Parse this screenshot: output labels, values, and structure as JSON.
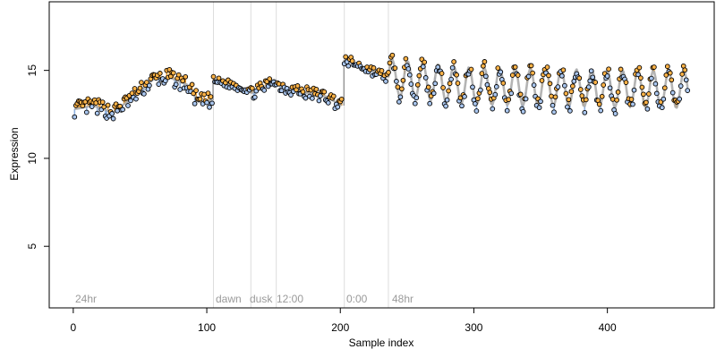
{
  "colors": {
    "points_orange": "#ffb347",
    "points_blue": "#a9c6ef",
    "fit_line": "#a7a7a7",
    "high_bar": "#f0a030",
    "low_bar": "#8fb1e0",
    "region_line": "#dddddd",
    "jump_line": "#8a8a8a"
  },
  "chart_data": {
    "type": "scatter",
    "xlabel": "Sample index",
    "ylabel": "Expression",
    "xlim": [
      -18,
      480
    ],
    "ylim": [
      1.5,
      18.9
    ],
    "x_ticks": [
      0,
      100,
      200,
      300,
      400
    ],
    "y_ticks": [
      5,
      10,
      15
    ],
    "x_tick_labels": [
      "0",
      "100",
      "200",
      "300",
      "400"
    ],
    "y_tick_labels": [
      "5",
      "10",
      "15"
    ],
    "grid": false,
    "legend": "none",
    "region_lines": [
      105,
      133,
      152,
      203,
      236
    ],
    "region_labels": [
      {
        "x": 3,
        "text": "24hr"
      },
      {
        "x": 107,
        "text": "dawn"
      },
      {
        "x": 133,
        "text": "dusk"
      },
      {
        "x": 152,
        "text": "12:00"
      },
      {
        "x": 204,
        "text": "0:00"
      },
      {
        "x": 237,
        "text": "48hr"
      }
    ],
    "segments": [
      {
        "x0": 1,
        "x1": 104,
        "trend": [
          [
            1,
            12.8
          ],
          [
            15,
            13.0
          ],
          [
            30,
            12.6
          ],
          [
            45,
            13.5
          ],
          [
            60,
            14.5
          ],
          [
            72,
            14.6
          ],
          [
            85,
            14.2
          ],
          [
            94,
            13.2
          ],
          [
            104,
            13.3
          ]
        ],
        "noise": 0.45
      },
      {
        "x0": 105,
        "x1": 132,
        "trend": [
          [
            105,
            14.4
          ],
          [
            118,
            14.2
          ],
          [
            132,
            13.9
          ]
        ],
        "noise": 0.25
      },
      {
        "x0": 133,
        "x1": 151,
        "trend": [
          [
            133,
            13.7
          ],
          [
            142,
            14.0
          ],
          [
            151,
            14.5
          ]
        ],
        "noise": 0.35
      },
      {
        "x0": 152,
        "x1": 201,
        "trend": [
          [
            152,
            14.2
          ],
          [
            170,
            13.8
          ],
          [
            190,
            13.5
          ],
          [
            201,
            13.0
          ]
        ],
        "noise": 0.4
      },
      {
        "x0": 203,
        "x1": 235,
        "trend": [
          [
            203,
            15.6
          ],
          [
            220,
            15.1
          ],
          [
            235,
            14.6
          ]
        ],
        "noise": 0.3
      },
      {
        "x0": 236,
        "x1": 460,
        "trend": [
          [
            236,
            14.6
          ],
          [
            300,
            14.1
          ],
          [
            380,
            14.0
          ],
          [
            460,
            13.9
          ]
        ],
        "noise": 0.4,
        "wave_amplitude": 1.05,
        "wave_period": 11.5
      }
    ]
  },
  "region_text": {
    "label_24hr": "24hr",
    "label_dawn": "dawn",
    "label_dusk": "dusk",
    "label_noon": "12:00",
    "label_midnight": "0:00",
    "label_48hr": "48hr"
  }
}
